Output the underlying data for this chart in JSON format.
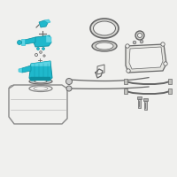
{
  "bg_color": "#f0f0ee",
  "teal": "#1fb8cc",
  "dark_teal": "#0d8fa0",
  "light_teal": "#5dd4e4",
  "line_color": "#888888",
  "dark_line": "#666666",
  "figsize": [
    2.0,
    2.0
  ],
  "dpi": 100
}
